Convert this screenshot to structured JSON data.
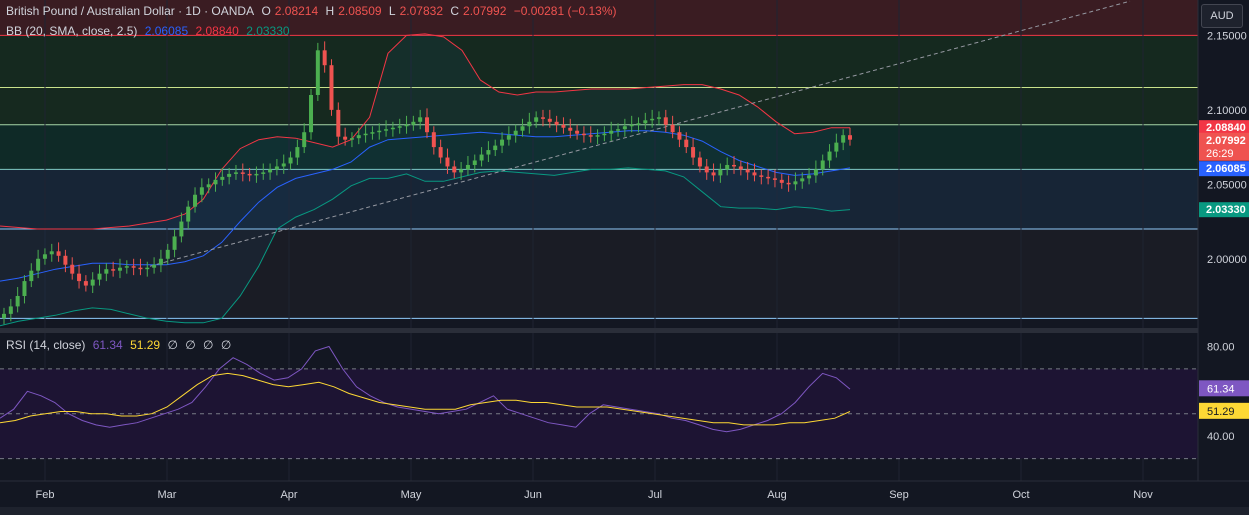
{
  "legend": {
    "symbol": "British Pound / Australian Dollar · 1D · OANDA",
    "o_label": "O",
    "open": "2.08214",
    "h_label": "H",
    "high": "2.08509",
    "l_label": "L",
    "low": "2.07832",
    "c_label": "C",
    "close": "2.07992",
    "change": "−0.00281 (−0.13%)",
    "bb_label": "BB (20, SMA, close, 2.5)",
    "bb_basis": "2.06085",
    "bb_upper": "2.08840",
    "bb_lower": "2.03330",
    "rsi_label": "RSI (14, close)",
    "rsi_value": "61.34",
    "rsi_ma": "51.29",
    "rsi_extra": [
      "∅",
      "∅",
      "∅",
      "∅"
    ]
  },
  "currency_button": "AUD",
  "countdown": "26:29",
  "colors": {
    "background": "#131722",
    "up": "#26a69a",
    "up_body": "#4caf50",
    "down": "#ef5350",
    "bb_basis": "#2962ff",
    "bb_upper": "#f23645",
    "bb_lower": "#089981",
    "rsi": "#7e57c2",
    "rsi_ma": "#fdd835"
  },
  "chart_data": [
    {
      "type": "candlestick",
      "title": "British Pound / Australian Dollar · 1D · OANDA",
      "y_ticks": [
        "2.15000",
        "2.10000",
        "2.05000",
        "2.00000"
      ],
      "ylim": [
        1.9535,
        2.1738
      ],
      "x_ticks": [
        "Feb",
        "Mar",
        "Apr",
        "May",
        "Jun",
        "Jul",
        "Aug",
        "Sep",
        "Oct",
        "Nov"
      ],
      "horizontal_levels": [
        2.15,
        2.115,
        2.09,
        2.06,
        2.02,
        1.96
      ],
      "price_labels": [
        {
          "label": "BB upper",
          "value": "2.08840"
        },
        {
          "label": "Close",
          "value": "2.07992"
        },
        {
          "label": "BB basis",
          "value": "2.06085"
        },
        {
          "label": "BB lower",
          "value": "2.03330"
        }
      ],
      "close_series": [
        1.963,
        1.968,
        1.975,
        1.985,
        1.992,
        2.0,
        2.003,
        2.005,
        2.002,
        1.996,
        1.99,
        1.985,
        1.982,
        1.986,
        1.99,
        1.993,
        1.992,
        1.994,
        1.995,
        1.994,
        1.993,
        1.994,
        1.996,
        2.0,
        2.006,
        2.015,
        2.025,
        2.035,
        2.043,
        2.048,
        2.05,
        2.053,
        2.055,
        2.057,
        2.058,
        2.057,
        2.056,
        2.057,
        2.058,
        2.06,
        2.062,
        2.064,
        2.068,
        2.075,
        2.085,
        2.11,
        2.14,
        2.13,
        2.1,
        2.082,
        2.08,
        2.081,
        2.083,
        2.084,
        2.085,
        2.086,
        2.087,
        2.088,
        2.089,
        2.09,
        2.092,
        2.095,
        2.085,
        2.075,
        2.068,
        2.062,
        2.058,
        2.06,
        2.063,
        2.066,
        2.07,
        2.073,
        2.076,
        2.08,
        2.083,
        2.086,
        2.089,
        2.092,
        2.095,
        2.094,
        2.092,
        2.09,
        2.088,
        2.086,
        2.084,
        2.083,
        2.082,
        2.083,
        2.084,
        2.086,
        2.087,
        2.089,
        2.09,
        2.091,
        2.093,
        2.094,
        2.095,
        2.09,
        2.085,
        2.08,
        2.075,
        2.068,
        2.062,
        2.058,
        2.056,
        2.06,
        2.063,
        2.062,
        2.06,
        2.058,
        2.056,
        2.055,
        2.054,
        2.053,
        2.051,
        2.05,
        2.052,
        2.054,
        2.056,
        2.06,
        2.066,
        2.072,
        2.078,
        2.083,
        2.08
      ],
      "bb_upper_series": [
        2.022,
        2.021,
        2.02,
        2.02,
        2.02,
        2.02,
        2.021,
        2.022,
        2.024,
        2.026,
        2.03,
        2.04,
        2.06,
        2.074,
        2.08,
        2.082,
        2.081,
        2.078,
        2.075,
        2.08,
        2.095,
        2.138,
        2.15,
        2.151,
        2.149,
        2.14,
        2.12,
        2.112,
        2.11,
        2.112,
        2.112,
        2.113,
        2.114,
        2.114,
        2.114,
        2.115,
        2.116,
        2.117,
        2.117,
        2.114,
        2.11,
        2.102,
        2.092,
        2.084,
        2.085,
        2.088,
        2.088
      ],
      "bb_basis_series": [
        1.985,
        1.987,
        1.99,
        1.993,
        1.995,
        1.997,
        1.997,
        1.996,
        1.996,
        1.996,
        1.998,
        2.002,
        2.011,
        2.025,
        2.038,
        2.048,
        2.054,
        2.057,
        2.06,
        2.065,
        2.075,
        2.08,
        2.081,
        2.082,
        2.083,
        2.084,
        2.085,
        2.084,
        2.083,
        2.082,
        2.082,
        2.083,
        2.084,
        2.085,
        2.086,
        2.086,
        2.085,
        2.083,
        2.079,
        2.072,
        2.066,
        2.062,
        2.058,
        2.056,
        2.057,
        2.059,
        2.061
      ],
      "bb_lower_series": [
        1.955,
        1.958,
        1.96,
        1.962,
        1.965,
        1.967,
        1.966,
        1.963,
        1.96,
        1.958,
        1.957,
        1.957,
        1.96,
        1.975,
        1.995,
        2.02,
        2.028,
        2.033,
        2.04,
        2.049,
        2.054,
        2.054,
        2.057,
        2.052,
        2.052,
        2.055,
        2.058,
        2.059,
        2.058,
        2.057,
        2.056,
        2.058,
        2.06,
        2.06,
        2.061,
        2.06,
        2.059,
        2.055,
        2.045,
        2.035,
        2.034,
        2.034,
        2.033,
        2.035,
        2.034,
        2.032,
        2.033
      ]
    },
    {
      "type": "line",
      "title": "RSI (14, close)",
      "y_ticks": [
        "80.00",
        "40.00"
      ],
      "ylim": [
        20,
        86
      ],
      "levels": [
        70,
        50,
        30
      ],
      "series": [
        {
          "name": "RSI",
          "values": [
            48,
            52,
            60,
            58,
            55,
            50,
            47,
            45,
            44,
            45,
            46,
            48,
            50,
            52,
            55,
            62,
            70,
            75,
            72,
            68,
            65,
            66,
            70,
            78,
            80,
            70,
            62,
            58,
            55,
            53,
            52,
            51,
            50,
            51,
            52,
            55,
            58,
            52,
            50,
            48,
            46,
            45,
            44,
            50,
            54,
            53,
            52,
            51,
            50,
            48,
            47,
            45,
            43,
            42,
            43,
            45,
            47,
            50,
            55,
            62,
            68,
            66,
            61
          ]
        },
        {
          "name": "RSI MA",
          "values": [
            46,
            47,
            49,
            50,
            51,
            51,
            50,
            50,
            49,
            49,
            50,
            53,
            58,
            63,
            67,
            68,
            67,
            65,
            63,
            62,
            63,
            64,
            62,
            59,
            57,
            55,
            54,
            53,
            52,
            52,
            52,
            54,
            55,
            56,
            56,
            55,
            55,
            54,
            53,
            53,
            53,
            52,
            51,
            50,
            49,
            48,
            47,
            46,
            46,
            45,
            45,
            45,
            46,
            46,
            47,
            48,
            51
          ]
        }
      ],
      "value_labels": [
        "61.34",
        "51.29"
      ]
    }
  ]
}
